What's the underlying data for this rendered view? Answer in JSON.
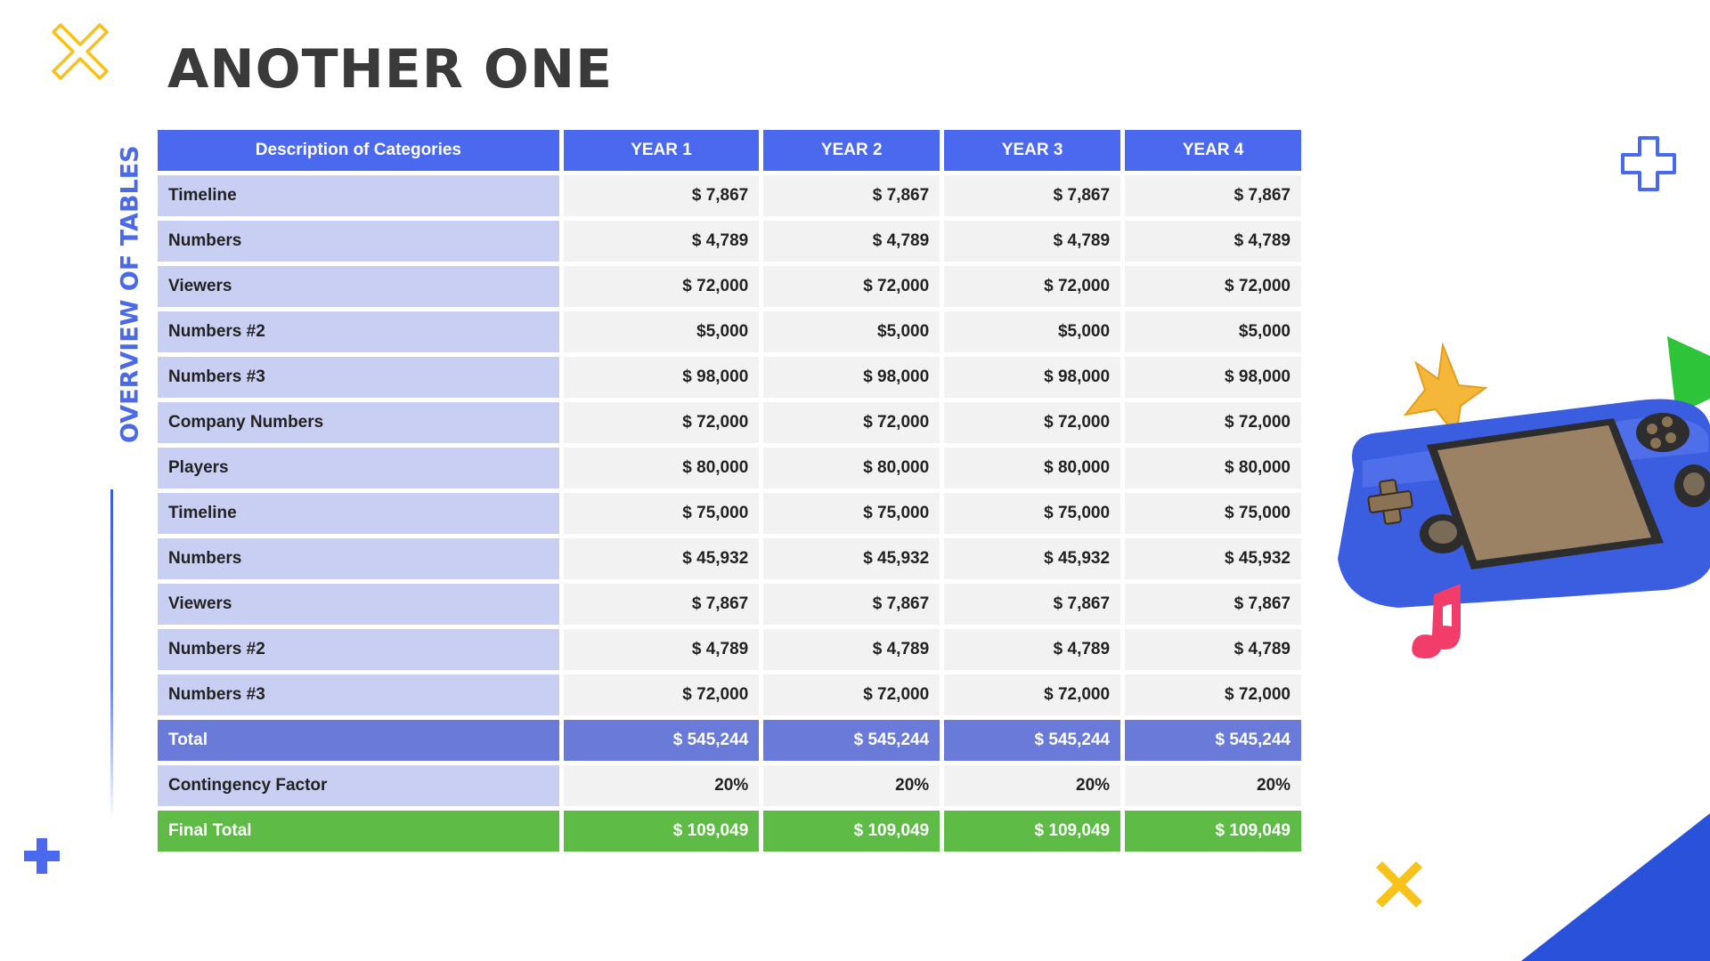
{
  "slide": {
    "title": "ANOTHER ONE",
    "side_label": "OVERVIEW OF TABLES"
  },
  "colors": {
    "title": "#3a3a3a",
    "accent_blue": "#4a69ee",
    "category_bg": "#c9cff2",
    "value_bg": "#f2f2f2",
    "total_bg": "#6a7ad9",
    "final_bg": "#5dbb46",
    "yellow": "#f7c21a"
  },
  "icons": [
    "outline-x-icon",
    "plus-icon",
    "outline-plus-icon",
    "x-icon",
    "game-console-illustration",
    "star-icon",
    "music-note-icon",
    "play-triangle-icon"
  ],
  "table": {
    "headers": [
      "Description of Categories",
      "YEAR 1",
      "YEAR 2",
      "YEAR 3",
      "YEAR 4"
    ],
    "rows": [
      {
        "label": "Timeline",
        "values": [
          "$ 7,867",
          "$ 7,867",
          "$ 7,867",
          "$ 7,867"
        ]
      },
      {
        "label": "Numbers",
        "values": [
          "$ 4,789",
          "$ 4,789",
          "$ 4,789",
          "$ 4,789"
        ]
      },
      {
        "label": "Viewers",
        "values": [
          "$ 72,000",
          "$ 72,000",
          "$ 72,000",
          "$ 72,000"
        ]
      },
      {
        "label": "Numbers #2",
        "values": [
          "$5,000",
          "$5,000",
          "$5,000",
          "$5,000"
        ]
      },
      {
        "label": "Numbers #3",
        "values": [
          "$ 98,000",
          "$ 98,000",
          "$ 98,000",
          "$ 98,000"
        ]
      },
      {
        "label": "Company Numbers",
        "values": [
          "$ 72,000",
          "$ 72,000",
          "$ 72,000",
          "$ 72,000"
        ]
      },
      {
        "label": "Players",
        "values": [
          "$ 80,000",
          "$ 80,000",
          "$ 80,000",
          "$ 80,000"
        ]
      },
      {
        "label": "Timeline",
        "values": [
          "$ 75,000",
          "$ 75,000",
          "$ 75,000",
          "$ 75,000"
        ]
      },
      {
        "label": "Numbers",
        "values": [
          "$ 45,932",
          "$ 45,932",
          "$ 45,932",
          "$ 45,932"
        ]
      },
      {
        "label": "Viewers",
        "values": [
          "$ 7,867",
          "$ 7,867",
          "$ 7,867",
          "$ 7,867"
        ]
      },
      {
        "label": "Numbers #2",
        "values": [
          "$ 4,789",
          "$ 4,789",
          "$ 4,789",
          "$ 4,789"
        ]
      },
      {
        "label": "Numbers #3",
        "values": [
          "$ 72,000",
          "$ 72,000",
          "$ 72,000",
          "$ 72,000"
        ]
      }
    ],
    "total": {
      "label": "Total",
      "values": [
        "$ 545,244",
        "$ 545,244",
        "$ 545,244",
        "$ 545,244"
      ]
    },
    "contingency": {
      "label": "Contingency Factor",
      "values": [
        "20%",
        "20%",
        "20%",
        "20%"
      ]
    },
    "final": {
      "label": "Final Total",
      "values": [
        "$ 109,049",
        "$ 109,049",
        "$ 109,049",
        "$ 109,049"
      ]
    }
  }
}
